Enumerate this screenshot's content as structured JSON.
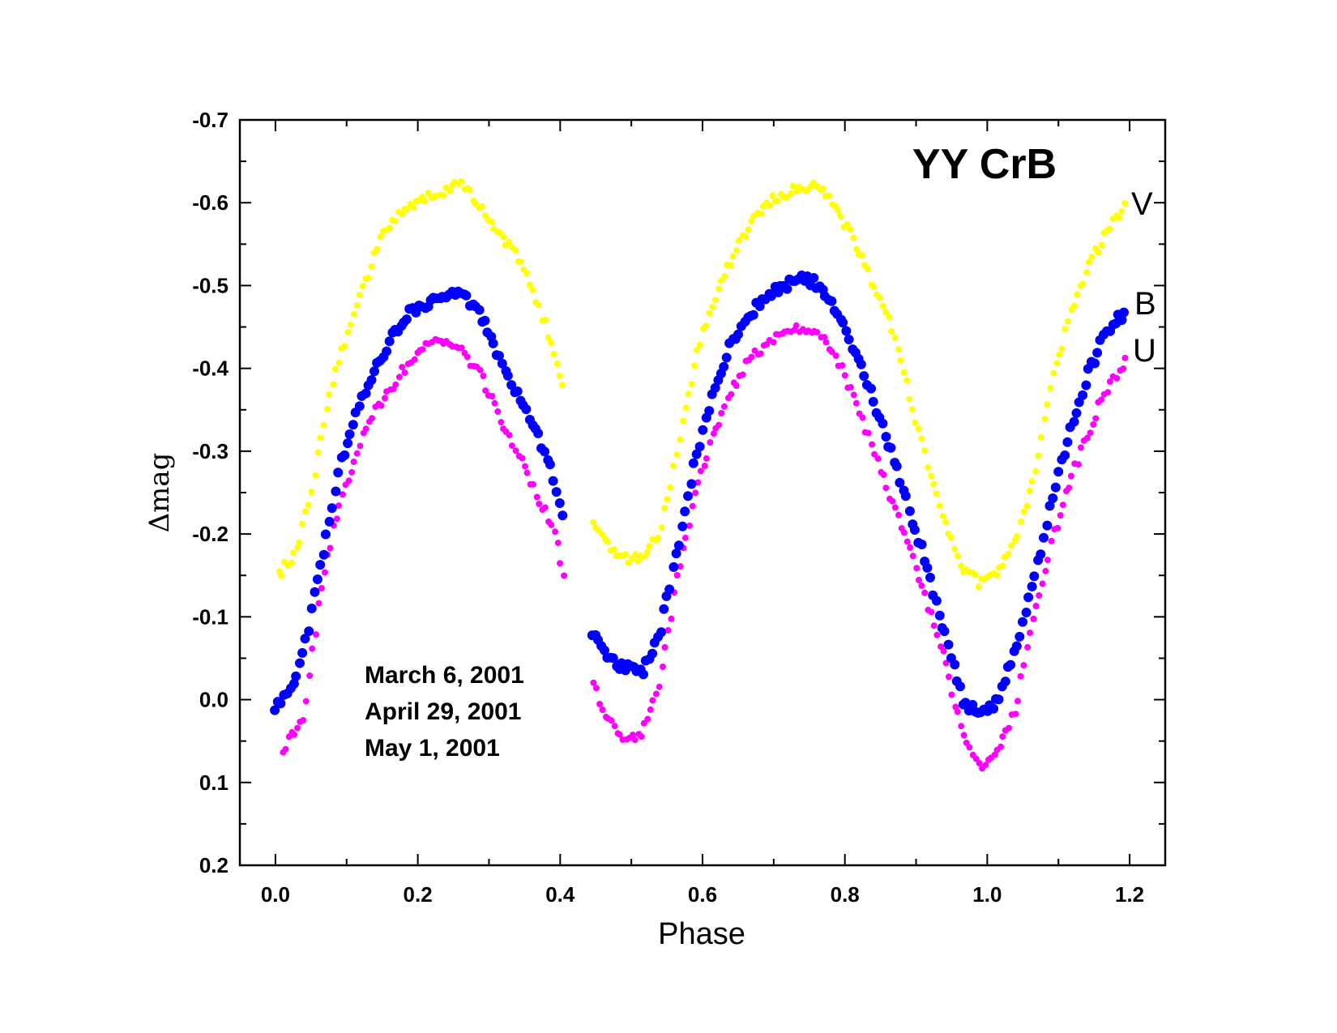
{
  "chart_data": {
    "type": "scatter",
    "title": "YY CrB",
    "xlabel": "Phase",
    "ylabel": "Δmag",
    "xlim": [
      -0.05,
      1.25
    ],
    "ylim": [
      0.2,
      -0.7
    ],
    "y_inverted": true,
    "x_ticks": [
      "0.0",
      "0.2",
      "0.4",
      "0.6",
      "0.8",
      "1.0",
      "1.2"
    ],
    "y_ticks": [
      "-0.7",
      "-0.6",
      "-0.5",
      "-0.4",
      "-0.3",
      "-0.2",
      "-0.1",
      "0.0",
      "0.1",
      "0.2"
    ],
    "annotations": [
      "March 6, 2001",
      "April 29, 2001",
      "May 1, 2001"
    ],
    "series": [
      {
        "name": "V",
        "color": "#ffff00",
        "gap": [
          0.405,
          0.445
        ],
        "phases": [
          0.005,
          0.03,
          0.05,
          0.075,
          0.1,
          0.125,
          0.15,
          0.175,
          0.2,
          0.225,
          0.25,
          0.265,
          0.285,
          0.31,
          0.335,
          0.36,
          0.38,
          0.405,
          0.445,
          0.465,
          0.49,
          0.515,
          0.54,
          0.565,
          0.59,
          0.615,
          0.64,
          0.665,
          0.69,
          0.715,
          0.74,
          0.765,
          0.79,
          0.815,
          0.84,
          0.865,
          0.89,
          0.915,
          0.94,
          0.965,
          0.99,
          1.015,
          1.04,
          1.065,
          1.09,
          1.115,
          1.14,
          1.165,
          1.195
        ],
        "values": [
          -0.15,
          -0.18,
          -0.25,
          -0.37,
          -0.44,
          -0.5,
          -0.56,
          -0.59,
          -0.6,
          -0.61,
          -0.62,
          -0.62,
          -0.6,
          -0.57,
          -0.54,
          -0.5,
          -0.45,
          -0.38,
          -0.22,
          -0.19,
          -0.17,
          -0.17,
          -0.2,
          -0.3,
          -0.41,
          -0.48,
          -0.53,
          -0.57,
          -0.6,
          -0.61,
          -0.62,
          -0.62,
          -0.59,
          -0.55,
          -0.5,
          -0.45,
          -0.37,
          -0.29,
          -0.22,
          -0.16,
          -0.14,
          -0.15,
          -0.19,
          -0.27,
          -0.38,
          -0.46,
          -0.52,
          -0.56,
          -0.6
        ]
      },
      {
        "name": "B",
        "color": "#0000ff",
        "gap": [
          0.405,
          0.445
        ],
        "phases": [
          0.0,
          0.02,
          0.04,
          0.065,
          0.09,
          0.115,
          0.14,
          0.165,
          0.19,
          0.215,
          0.24,
          0.265,
          0.29,
          0.315,
          0.34,
          0.365,
          0.39,
          0.405,
          0.445,
          0.465,
          0.49,
          0.515,
          0.54,
          0.565,
          0.59,
          0.615,
          0.64,
          0.665,
          0.69,
          0.715,
          0.74,
          0.765,
          0.79,
          0.815,
          0.84,
          0.865,
          0.89,
          0.915,
          0.94,
          0.965,
          0.99,
          1.015,
          1.04,
          1.065,
          1.09,
          1.115,
          1.14,
          1.165,
          1.195
        ],
        "values": [
          0.01,
          -0.01,
          -0.06,
          -0.17,
          -0.28,
          -0.35,
          -0.4,
          -0.44,
          -0.47,
          -0.48,
          -0.49,
          -0.49,
          -0.46,
          -0.41,
          -0.37,
          -0.33,
          -0.27,
          -0.22,
          -0.08,
          -0.05,
          -0.04,
          -0.03,
          -0.08,
          -0.18,
          -0.29,
          -0.37,
          -0.43,
          -0.46,
          -0.49,
          -0.5,
          -0.51,
          -0.5,
          -0.47,
          -0.42,
          -0.36,
          -0.3,
          -0.23,
          -0.16,
          -0.08,
          0.0,
          0.02,
          0.0,
          -0.06,
          -0.14,
          -0.24,
          -0.32,
          -0.39,
          -0.44,
          -0.47
        ]
      },
      {
        "name": "U",
        "color": "#ff00ff",
        "gap": [
          0.405,
          0.445
        ],
        "phases": [
          0.01,
          0.025,
          0.04,
          0.065,
          0.09,
          0.115,
          0.14,
          0.165,
          0.19,
          0.215,
          0.24,
          0.265,
          0.29,
          0.315,
          0.34,
          0.365,
          0.39,
          0.405,
          0.445,
          0.465,
          0.49,
          0.515,
          0.54,
          0.565,
          0.59,
          0.615,
          0.64,
          0.665,
          0.69,
          0.715,
          0.74,
          0.765,
          0.79,
          0.815,
          0.84,
          0.865,
          0.89,
          0.915,
          0.94,
          0.965,
          0.99,
          1.015,
          1.04,
          1.065,
          1.09,
          1.115,
          1.14,
          1.165,
          1.195
        ],
        "values": [
          0.06,
          0.04,
          0.02,
          -0.14,
          -0.24,
          -0.3,
          -0.35,
          -0.38,
          -0.41,
          -0.43,
          -0.43,
          -0.42,
          -0.39,
          -0.34,
          -0.3,
          -0.25,
          -0.21,
          -0.15,
          -0.02,
          0.02,
          0.05,
          0.04,
          -0.02,
          -0.15,
          -0.25,
          -0.32,
          -0.37,
          -0.41,
          -0.43,
          -0.44,
          -0.45,
          -0.44,
          -0.41,
          -0.36,
          -0.3,
          -0.24,
          -0.19,
          -0.12,
          -0.05,
          0.04,
          0.08,
          0.06,
          0.01,
          -0.1,
          -0.19,
          -0.26,
          -0.32,
          -0.37,
          -0.41
        ]
      }
    ]
  }
}
